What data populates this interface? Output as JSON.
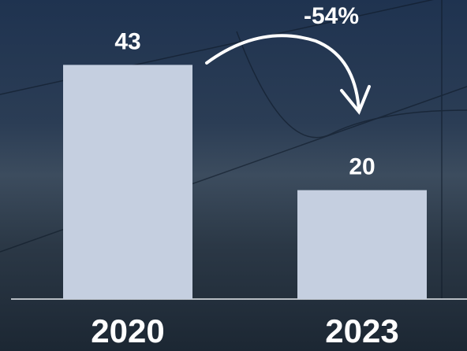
{
  "chart_data": {
    "type": "bar",
    "categories": [
      "2020",
      "2023"
    ],
    "values": [
      43,
      20
    ],
    "color": "#c5cfe0",
    "annotation": "-54%"
  }
}
